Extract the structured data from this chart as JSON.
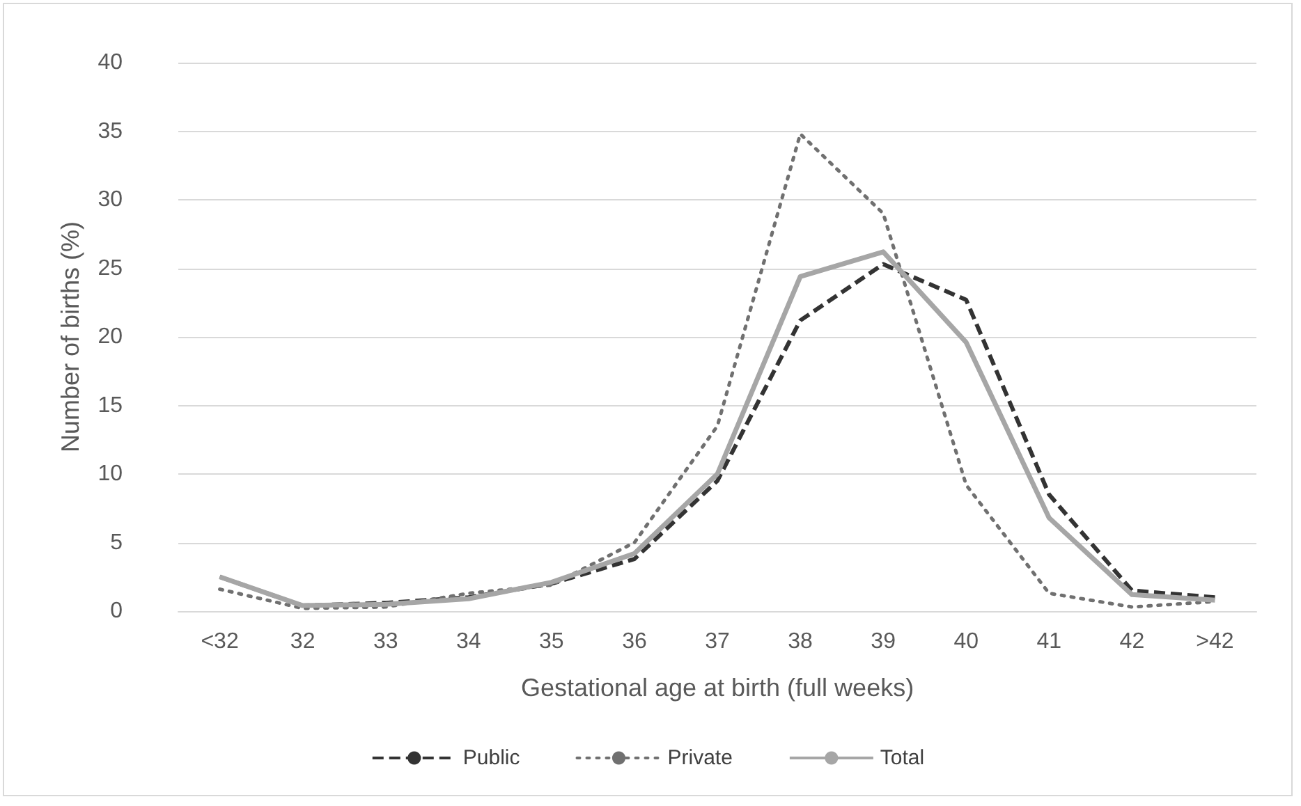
{
  "chart_data": {
    "type": "line",
    "xlabel": "Gestational age at birth (full weeks)",
    "ylabel": "Number of births (%)",
    "categories": [
      "<32",
      "32",
      "33",
      "34",
      "35",
      "36",
      "37",
      "38",
      "39",
      "40",
      "41",
      "42",
      ">42"
    ],
    "series": [
      {
        "name": "Public",
        "color": "#333333",
        "line_style": "dashed",
        "values": [
          2.5,
          0.4,
          0.6,
          1.0,
          2.0,
          3.8,
          9.5,
          21.2,
          25.3,
          22.7,
          8.5,
          1.5,
          1.0
        ]
      },
      {
        "name": "Private",
        "color": "#707070",
        "line_style": "dotted",
        "values": [
          1.6,
          0.2,
          0.3,
          1.3,
          1.9,
          5.0,
          13.5,
          34.8,
          29.0,
          9.2,
          1.3,
          0.3,
          0.7
        ]
      },
      {
        "name": "Total",
        "color": "#a6a6a6",
        "line_style": "solid",
        "values": [
          2.5,
          0.4,
          0.5,
          0.9,
          2.1,
          4.2,
          10.0,
          24.4,
          26.2,
          19.6,
          6.8,
          1.2,
          0.8
        ]
      }
    ],
    "ylim": [
      0,
      40
    ],
    "yticks": [
      0,
      5,
      10,
      15,
      20,
      25,
      30,
      35,
      40
    ],
    "grid": "y",
    "legend": "bottom",
    "marker": "none"
  }
}
